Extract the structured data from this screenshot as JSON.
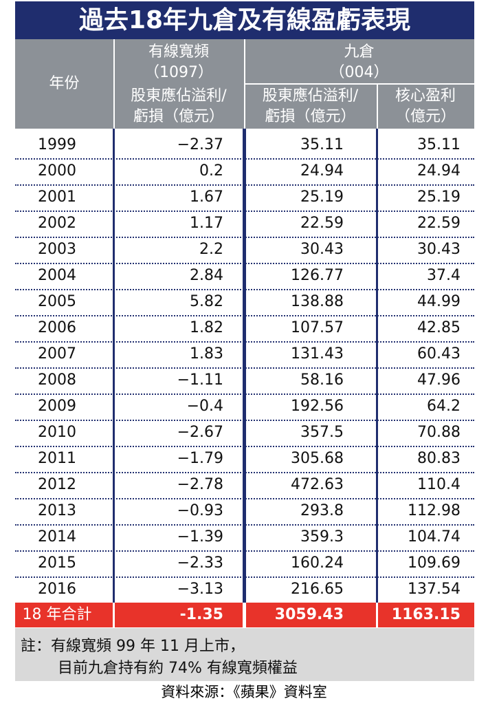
{
  "title": "過去18年九倉及有線盈虧表現",
  "header": {
    "year": "年份",
    "cable_name": "有線寬頻",
    "cable_code": "（1097）",
    "cable_sub": [
      "股東應佔溢利/",
      "虧損（億元）"
    ],
    "wheelock_name": "九倉",
    "wheelock_code": "（004）",
    "wheelock_profit": [
      "股東應佔溢利/",
      "虧損（億元）"
    ],
    "wheelock_core": [
      "核心盈利",
      "（億元）"
    ]
  },
  "table": {
    "rows": [
      [
        "1999",
        "−2.37",
        "35.11",
        "35.11"
      ],
      [
        "2000",
        "0.2",
        "24.94",
        "24.94"
      ],
      [
        "2001",
        "1.67",
        "25.19",
        "25.19"
      ],
      [
        "2002",
        "1.17",
        "22.59",
        "22.59"
      ],
      [
        "2003",
        "2.2",
        "30.43",
        "30.43"
      ],
      [
        "2004",
        "2.84",
        "126.77",
        "37.4"
      ],
      [
        "2005",
        "5.82",
        "138.88",
        "44.99"
      ],
      [
        "2006",
        "1.82",
        "107.57",
        "42.85"
      ],
      [
        "2007",
        "1.83",
        "131.43",
        "60.43"
      ],
      [
        "2008",
        "−1.11",
        "58.16",
        "47.96"
      ],
      [
        "2009",
        "−0.4",
        "192.56",
        "64.2"
      ],
      [
        "2010",
        "−2.67",
        "357.5",
        "70.88"
      ],
      [
        "2011",
        "−1.79",
        "305.68",
        "80.83"
      ],
      [
        "2012",
        "−2.78",
        "472.63",
        "110.4"
      ],
      [
        "2013",
        "−0.93",
        "293.8",
        "112.98"
      ],
      [
        "2014",
        "−1.39",
        "359.3",
        "104.74"
      ],
      [
        "2015",
        "−2.33",
        "160.24",
        "109.69"
      ],
      [
        "2016",
        "−3.13",
        "216.65",
        "137.54"
      ]
    ],
    "total": [
      "18 年合計",
      "-1.35",
      "3059.43",
      "1163.15"
    ]
  },
  "note": [
    "註：有線寬頻 99 年 11 月上市，",
    "目前九倉持有約 74% 有線寬頻權益"
  ],
  "source": "資料來源：《蘋果》資料室"
}
